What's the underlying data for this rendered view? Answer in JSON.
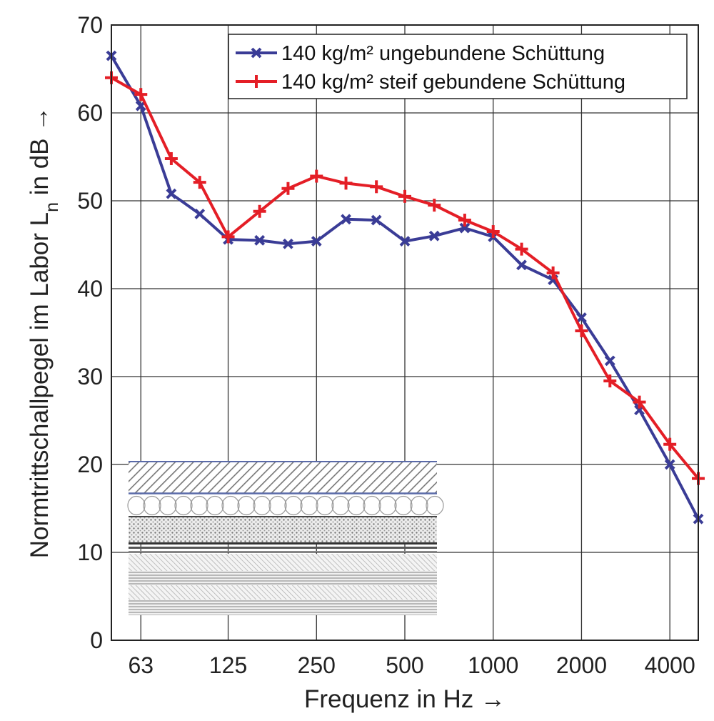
{
  "chart_data": {
    "type": "line",
    "xlabel": "Frequenz in Hz →",
    "ylabel": "Normtrittschallpegel im Labor L",
    "ylabel_sub": "n",
    "ylabel_suffix": " in dB →",
    "x_scale": "log",
    "xlim": [
      50,
      5000
    ],
    "ylim": [
      0,
      70
    ],
    "grid": true,
    "legend_position": "top-right",
    "x_ticks": [
      63,
      125,
      250,
      500,
      1000,
      2000,
      4000
    ],
    "x_tick_labels": [
      "63",
      "125",
      "250",
      "500",
      "1000",
      "2000",
      "4000"
    ],
    "y_ticks": [
      0,
      10,
      20,
      30,
      40,
      50,
      60,
      70
    ],
    "y_tick_labels": [
      "0",
      "10",
      "20",
      "30",
      "40",
      "50",
      "60",
      "70"
    ],
    "x": [
      50,
      63,
      80,
      100,
      125,
      160,
      200,
      250,
      315,
      400,
      500,
      630,
      800,
      1000,
      1250,
      1600,
      2000,
      2500,
      3150,
      4000,
      5000
    ],
    "series": [
      {
        "name": "140 kg/m² ungebundene Schüttung",
        "color": "#3a3c96",
        "marker": "x",
        "values": [
          66.5,
          60.8,
          50.8,
          48.5,
          45.6,
          45.5,
          45.1,
          45.4,
          47.9,
          47.8,
          45.4,
          46.0,
          46.9,
          45.9,
          42.7,
          41.0,
          36.7,
          31.8,
          26.2,
          20.0,
          13.8
        ]
      },
      {
        "name": "140 kg/m² steif gebundene Schüttung",
        "color": "#e41e26",
        "marker": "+",
        "values": [
          64.0,
          62.1,
          54.8,
          52.1,
          45.9,
          48.8,
          51.4,
          52.8,
          52.0,
          51.6,
          50.5,
          49.5,
          47.8,
          46.5,
          44.5,
          41.8,
          35.2,
          29.5,
          27.1,
          22.3,
          18.4
        ]
      }
    ]
  }
}
